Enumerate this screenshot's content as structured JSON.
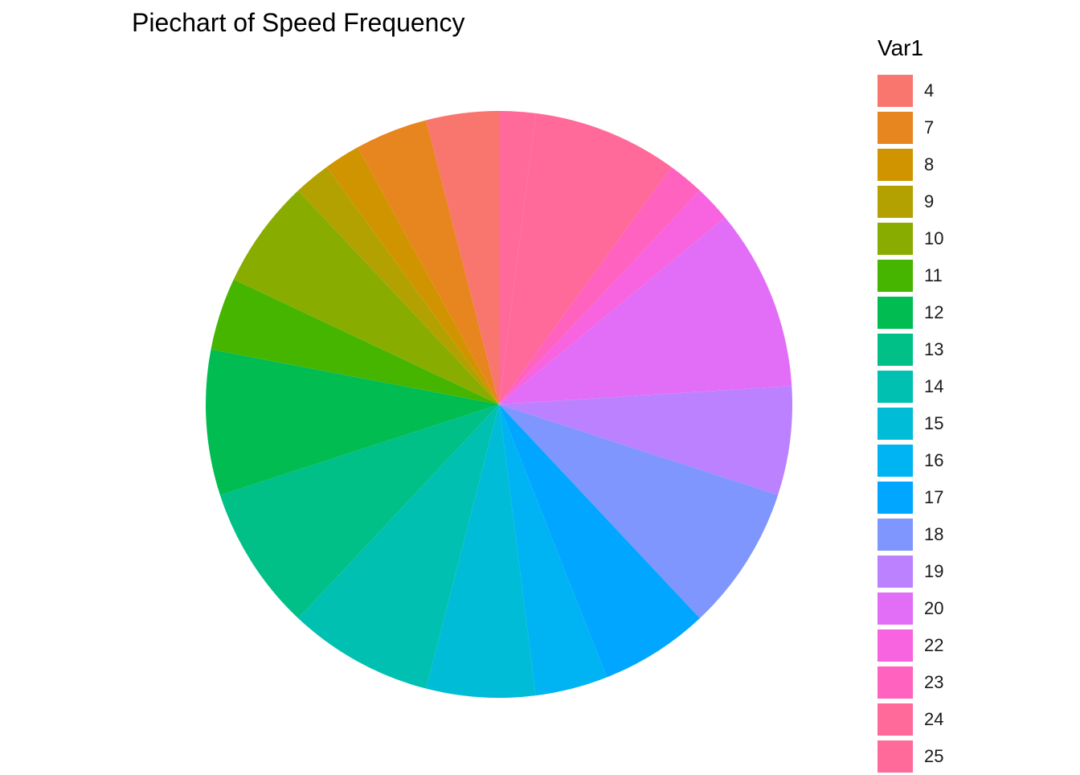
{
  "chart_data": {
    "type": "pie",
    "title": "Piechart of Speed Frequency",
    "legend_title": "Var1",
    "legend_position": "right",
    "categories": [
      "4",
      "7",
      "8",
      "9",
      "10",
      "11",
      "12",
      "13",
      "14",
      "15",
      "16",
      "17",
      "18",
      "19",
      "20",
      "22",
      "23",
      "24",
      "25"
    ],
    "values": [
      2,
      2,
      1,
      1,
      3,
      2,
      4,
      4,
      4,
      3,
      2,
      3,
      4,
      3,
      5,
      1,
      1,
      4,
      1
    ],
    "colors": [
      "#F8766D",
      "#E7851E",
      "#D09400",
      "#B2A100",
      "#89AC00",
      "#45B500",
      "#00BC51",
      "#00C087",
      "#00C0B2",
      "#00BCD6",
      "#00B3F2",
      "#00A6FF",
      "#7F96FF",
      "#BC81FF",
      "#E26EF7",
      "#F863DF",
      "#FF62BF",
      "#FF6A9A",
      "#FF6A9A"
    ],
    "slice_order": [
      "25",
      "24",
      "23",
      "22",
      "20",
      "19",
      "18",
      "17",
      "16",
      "15",
      "14",
      "13",
      "12",
      "11",
      "10",
      "9",
      "8",
      "7",
      "4"
    ]
  }
}
